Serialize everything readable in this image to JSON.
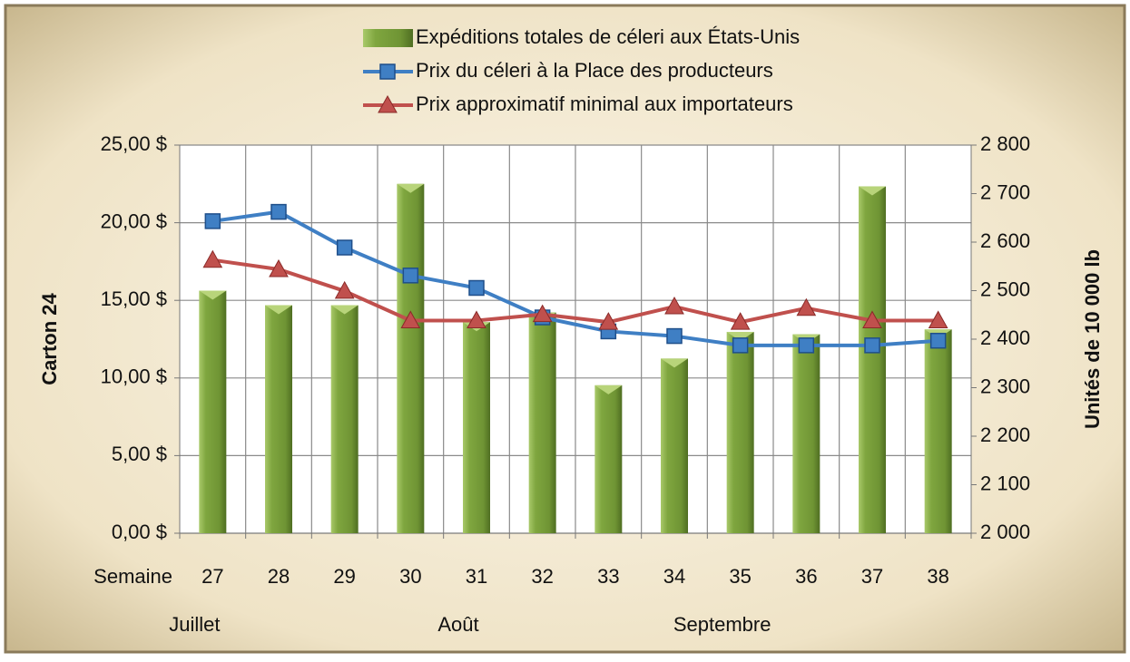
{
  "chart_data": {
    "type": "bar",
    "categories": [
      "27",
      "28",
      "29",
      "30",
      "31",
      "32",
      "33",
      "34",
      "35",
      "36",
      "37",
      "38"
    ],
    "category_axis_label": "Semaine",
    "month_labels": [
      "Juillet",
      null,
      null,
      null,
      "Août",
      null,
      null,
      null,
      "Septembre",
      null,
      null,
      null
    ],
    "y_label": "Carton 24",
    "y2_label": "Unités de 10 000 lb",
    "ylim": [
      0,
      25
    ],
    "yticks": [
      {
        "value": 0,
        "label": "0,00 $"
      },
      {
        "value": 5,
        "label": "5,00 $"
      },
      {
        "value": 10,
        "label": "10,00 $"
      },
      {
        "value": 15,
        "label": "15,00 $"
      },
      {
        "value": 20,
        "label": "20,00 $"
      },
      {
        "value": 25,
        "label": "25,00 $"
      }
    ],
    "y2lim": [
      2000,
      2800
    ],
    "y2ticks": [
      {
        "value": 2000,
        "label": "2 000"
      },
      {
        "value": 2100,
        "label": "2 100"
      },
      {
        "value": 2200,
        "label": "2 200"
      },
      {
        "value": 2300,
        "label": "2 300"
      },
      {
        "value": 2400,
        "label": "2 400"
      },
      {
        "value": 2500,
        "label": "2 500"
      },
      {
        "value": 2600,
        "label": "2 600"
      },
      {
        "value": 2700,
        "label": "2 700"
      },
      {
        "value": 2800,
        "label": "2 800"
      }
    ],
    "grid": true,
    "legend": "top",
    "series": [
      {
        "name": "Expéditions totales de céleri aux États-Unis",
        "type": "bar",
        "axis": "y2",
        "color": "#8db04a",
        "values": [
          2500,
          2470,
          2470,
          2720,
          2435,
          2455,
          2305,
          2360,
          2415,
          2410,
          2715,
          2420
        ]
      },
      {
        "name": "Prix du céleri à la Place des producteurs",
        "type": "line",
        "marker": "square",
        "color": "#3f7fc4",
        "values": [
          20.1,
          20.7,
          18.4,
          16.6,
          15.8,
          13.9,
          13.0,
          12.7,
          12.1,
          12.1,
          12.1,
          12.4
        ]
      },
      {
        "name": "Prix approximatif minimal aux importateurs",
        "type": "line",
        "marker": "triangle",
        "color": "#c0504d",
        "values": [
          17.6,
          17.0,
          15.6,
          13.7,
          13.7,
          14.1,
          13.6,
          14.6,
          13.6,
          14.5,
          13.7,
          13.7
        ]
      }
    ]
  }
}
